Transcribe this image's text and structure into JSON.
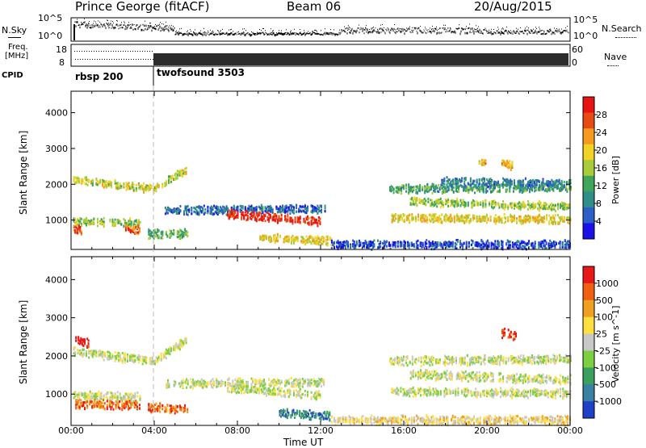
{
  "header": {
    "station": "Prince George (fitACF)",
    "beam": "Beam 06",
    "date": "20/Aug/2015"
  },
  "side_labels": {
    "nsky": "N.Sky",
    "freq_line1": "Freq.",
    "freq_line2": "[MHz]",
    "cpid": "CPID",
    "nsearch": "N.Search",
    "nave": "Nave"
  },
  "strip_ticks": {
    "noise_left": [
      "10^5",
      "10^0"
    ],
    "noise_right": [
      "10^5",
      "10^0"
    ],
    "freq_left": [
      "18",
      "8"
    ],
    "nave_right": [
      "60",
      "0"
    ]
  },
  "cpid_segments": [
    {
      "label": "rbsp 200",
      "start_hour": 0.0
    },
    {
      "label": "twofsound 3503",
      "start_hour": 3.95
    }
  ],
  "chart_data": [
    {
      "type": "heatmap",
      "title": "Power",
      "xlabel": "Time UT",
      "ylabel": "Slant Range [km]",
      "x_ticks": [
        "00:00",
        "04:00",
        "08:00",
        "12:00",
        "16:00",
        "20:00",
        "00:00"
      ],
      "xlim_hours": [
        0,
        24
      ],
      "y_ticks": [
        1000,
        2000,
        3000,
        4000
      ],
      "ylim": [
        180,
        4600
      ],
      "colorbar_label": "Power [dB]",
      "colorbar_ticks": [
        "28",
        "24",
        "20",
        "16",
        "12",
        "8",
        "4"
      ],
      "colorbar_colors": [
        "#1a10e8",
        "#2e5fc7",
        "#2f8e88",
        "#3fa55a",
        "#a8cc3a",
        "#f2d224",
        "#f59a1e",
        "#e84a14",
        "#e81414"
      ],
      "bands": [
        {
          "t0": 0.1,
          "t1": 4.0,
          "r_start": 2100,
          "r_end": 1850,
          "level": 0.55
        },
        {
          "t0": 4.0,
          "t1": 5.5,
          "r_start": 1850,
          "r_end": 2400,
          "level": 0.55
        },
        {
          "t0": 0.1,
          "t1": 3.3,
          "r_start": 950,
          "r_end": 900,
          "level": 0.45
        },
        {
          "t0": 0.1,
          "t1": 0.5,
          "r_start": 750,
          "r_end": 700,
          "level": 0.85
        },
        {
          "t0": 2.6,
          "t1": 3.3,
          "r_start": 750,
          "r_end": 700,
          "level": 0.8
        },
        {
          "t0": 3.7,
          "t1": 5.6,
          "r_start": 600,
          "r_end": 600,
          "level": 0.4
        },
        {
          "t0": 4.5,
          "t1": 12.2,
          "r_start": 1250,
          "r_end": 1300,
          "level": 0.2
        },
        {
          "t0": 7.5,
          "t1": 12.0,
          "r_start": 1150,
          "r_end": 950,
          "level": 0.9
        },
        {
          "t0": 9.0,
          "t1": 12.5,
          "r_start": 500,
          "r_end": 400,
          "level": 0.6
        },
        {
          "t0": 15.4,
          "t1": 24.0,
          "r_start": 1050,
          "r_end": 1000,
          "level": 0.6
        },
        {
          "t0": 16.3,
          "t1": 24.0,
          "r_start": 1500,
          "r_end": 1350,
          "level": 0.5
        },
        {
          "t0": 15.3,
          "t1": 24.0,
          "r_start": 1850,
          "r_end": 1900,
          "level": 0.35
        },
        {
          "t0": 17.8,
          "t1": 24.0,
          "r_start": 2050,
          "r_end": 2000,
          "level": 0.25
        },
        {
          "t0": 20.7,
          "t1": 21.2,
          "r_start": 2600,
          "r_end": 2500,
          "level": 0.65
        },
        {
          "t0": 19.6,
          "t1": 19.9,
          "r_start": 2600,
          "r_end": 2600,
          "level": 0.65
        },
        {
          "t0": 12.5,
          "t1": 24.0,
          "r_start": 300,
          "r_end": 300,
          "level": 0.15
        }
      ]
    },
    {
      "type": "heatmap",
      "title": "Velocity",
      "xlabel": "Time UT",
      "ylabel": "Slant Range [km]",
      "x_ticks": [
        "00:00",
        "04:00",
        "08:00",
        "12:00",
        "16:00",
        "20:00",
        "00:00"
      ],
      "xlim_hours": [
        0,
        24
      ],
      "y_ticks": [
        1000,
        2000,
        3000,
        4000
      ],
      "ylim": [
        180,
        4600
      ],
      "colorbar_label": "Velocity [m s^-1]",
      "colorbar_ticks": [
        "1000",
        "500",
        "100",
        "25",
        "-25",
        "-100",
        "-500",
        "-1000"
      ],
      "colorbar_colors": [
        "#2040c8",
        "#3a80a0",
        "#3aa060",
        "#7cd040",
        "#c8c8c8",
        "#ffe040",
        "#f0a020",
        "#f06010",
        "#e81818"
      ],
      "bands": [
        {
          "t0": 0.1,
          "t1": 4.0,
          "r_start": 2100,
          "r_end": 1850,
          "level": 0.5
        },
        {
          "t0": 4.0,
          "t1": 5.5,
          "r_start": 1850,
          "r_end": 2400,
          "level": 0.5
        },
        {
          "t0": 0.2,
          "t1": 0.9,
          "r_start": 2400,
          "r_end": 2300,
          "level": 1.0
        },
        {
          "t0": 0.1,
          "t1": 3.3,
          "r_start": 950,
          "r_end": 900,
          "level": 0.5
        },
        {
          "t0": 0.2,
          "t1": 3.3,
          "r_start": 720,
          "r_end": 700,
          "level": 0.82
        },
        {
          "t0": 3.7,
          "t1": 5.6,
          "r_start": 620,
          "r_end": 600,
          "level": 0.8
        },
        {
          "t0": 4.5,
          "t1": 12.2,
          "r_start": 1250,
          "r_end": 1300,
          "level": 0.5
        },
        {
          "t0": 7.5,
          "t1": 12.0,
          "r_start": 1150,
          "r_end": 950,
          "level": 0.5
        },
        {
          "t0": 10.0,
          "t1": 12.5,
          "r_start": 500,
          "r_end": 400,
          "level": 0.2
        },
        {
          "t0": 15.4,
          "t1": 24.0,
          "r_start": 1050,
          "r_end": 1000,
          "level": 0.5
        },
        {
          "t0": 16.3,
          "t1": 24.0,
          "r_start": 1500,
          "r_end": 1350,
          "level": 0.5
        },
        {
          "t0": 15.3,
          "t1": 24.0,
          "r_start": 1850,
          "r_end": 1900,
          "level": 0.5
        },
        {
          "t0": 20.7,
          "t1": 21.4,
          "r_start": 2600,
          "r_end": 2500,
          "level": 0.9
        },
        {
          "t0": 12.5,
          "t1": 24.0,
          "r_start": 300,
          "r_end": 300,
          "level": 0.6
        }
      ]
    }
  ]
}
